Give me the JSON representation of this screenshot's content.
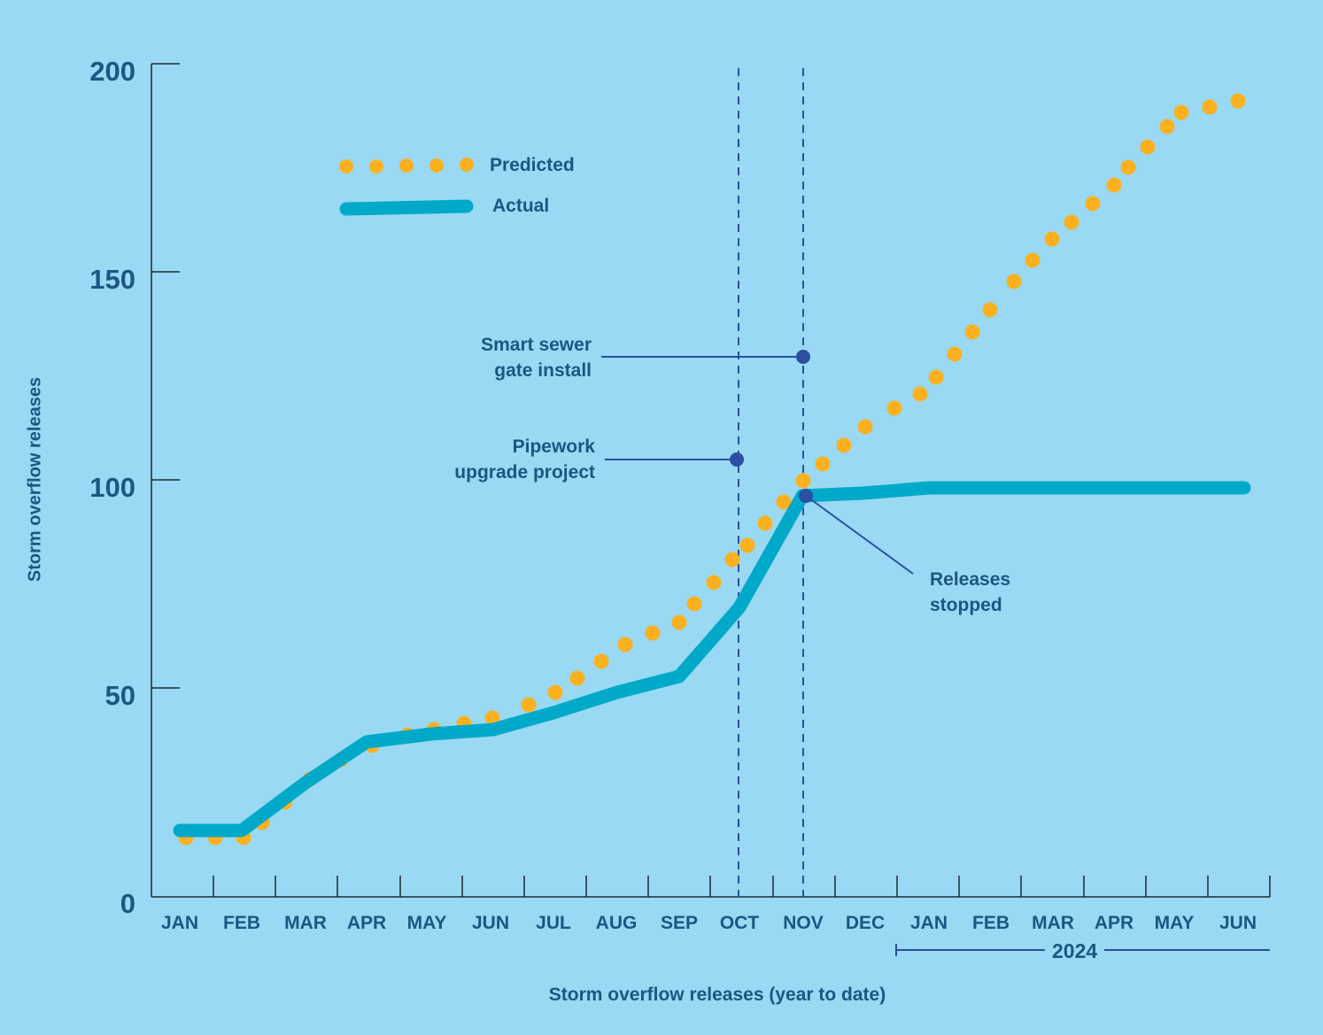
{
  "chart_data": {
    "type": "line",
    "title": "",
    "xlabel": "Storm overflow releases (year to date)",
    "ylabel": "Storm overflow releases",
    "ylim": [
      0,
      200
    ],
    "yticks": [
      0,
      50,
      100,
      150,
      200
    ],
    "categories": [
      "JAN",
      "FEB",
      "MAR",
      "APR",
      "MAY",
      "JUN",
      "JUL",
      "AUG",
      "SEP",
      "OCT",
      "NOV",
      "DEC",
      "JAN",
      "FEB",
      "MAR",
      "APR",
      "MAY",
      "JUN"
    ],
    "year_bracket": {
      "label": "2024",
      "from": "JAN",
      "to": "JUN"
    },
    "grid": false,
    "legend_position": "upper-left",
    "series": [
      {
        "name": "Predicted",
        "style": "dotted",
        "color": "#fbb11f",
        "values": [
          14,
          14,
          22,
          37,
          40,
          43,
          52,
          60,
          67,
          84,
          100,
          109,
          121,
          132,
          153,
          171,
          185,
          191
        ]
      },
      {
        "name": "Actual",
        "style": "solid",
        "color": "#00a9c8",
        "values": [
          16,
          16,
          27,
          37,
          39,
          40,
          44,
          49,
          53,
          70,
          96,
          97,
          98,
          98,
          98,
          98,
          98,
          98
        ]
      }
    ],
    "annotations": [
      {
        "text": "Pipework upgrade project",
        "at": "OCT",
        "y": 105
      },
      {
        "text": "Smart sewer gate install",
        "at": "NOV",
        "y": 129
      },
      {
        "text": "Releases stopped",
        "at": "NOV",
        "y": 96
      }
    ]
  },
  "axis": {
    "y_ticks": [
      "0",
      "50",
      "100",
      "150",
      "200"
    ],
    "x_ticks": [
      "JAN",
      "FEB",
      "MAR",
      "APR",
      "MAY",
      "JUN",
      "JUL",
      "AUG",
      "SEP",
      "OCT",
      "NOV",
      "DEC",
      "JAN",
      "FEB",
      "MAR",
      "APR",
      "MAY",
      "JUN"
    ],
    "x_title": "Storm overflow releases (year to date)",
    "y_title": "Storm overflow releases",
    "year_label": "2024"
  },
  "legend": {
    "predicted": "Predicted",
    "actual": "Actual"
  },
  "annotations": {
    "smart_line1": "Smart sewer",
    "smart_line2": "gate install",
    "pipe_line1": "Pipework",
    "pipe_line2": "upgrade project",
    "rel_line1": "Releases",
    "rel_line2": "stopped"
  },
  "colors": {
    "background": "#99d9f3",
    "text": "#1d5682",
    "predicted": "#fbb11f",
    "actual": "#00a9c8",
    "annotation": "#2a4fa3",
    "axis": "#1e2a33"
  }
}
